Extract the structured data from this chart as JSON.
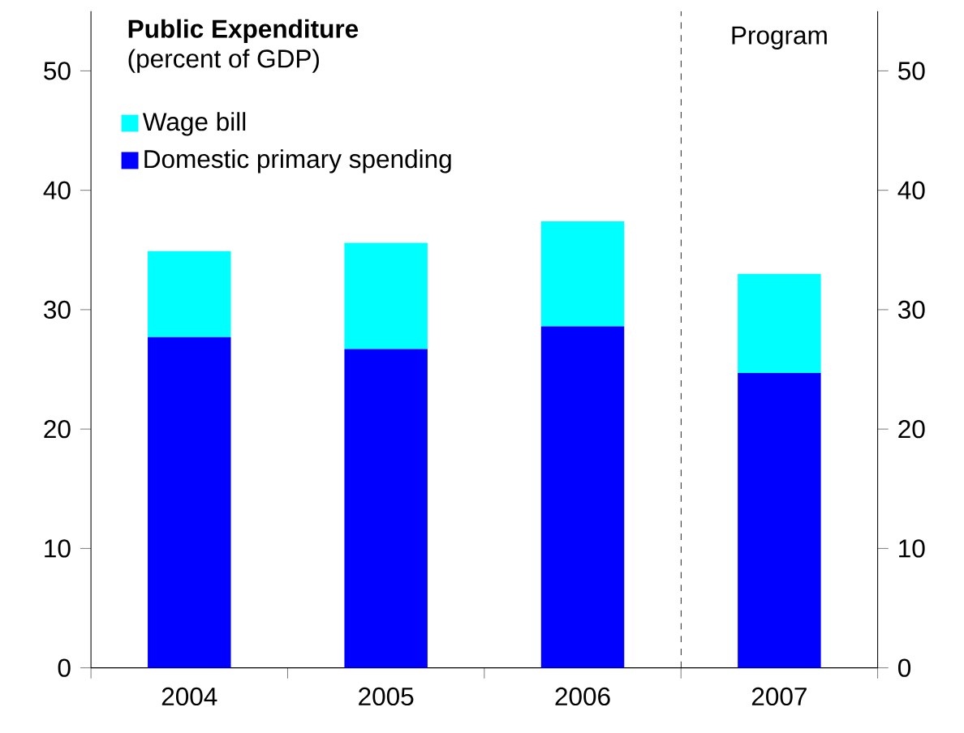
{
  "chart_data": {
    "type": "bar",
    "title": "Public Expenditure",
    "subtitle": "(percent of GDP)",
    "categories": [
      "2004",
      "2005",
      "2006",
      "2007"
    ],
    "series": [
      {
        "name": "Domestic primary spending",
        "color": "#0000ff",
        "values": [
          27.7,
          26.7,
          28.6,
          24.7
        ]
      },
      {
        "name": "Wage bill",
        "color": "#00ffff",
        "values": [
          7.2,
          8.9,
          8.8,
          8.3
        ]
      }
    ],
    "stacked": true,
    "ylim": [
      0,
      55
    ],
    "yticks": [
      0,
      10,
      20,
      30,
      40,
      50
    ],
    "y2lim": [
      0,
      55
    ],
    "y2ticks": [
      0,
      10,
      20,
      30,
      40,
      50
    ],
    "annotations": [
      "Program"
    ],
    "legend": "top left",
    "grid": false
  }
}
